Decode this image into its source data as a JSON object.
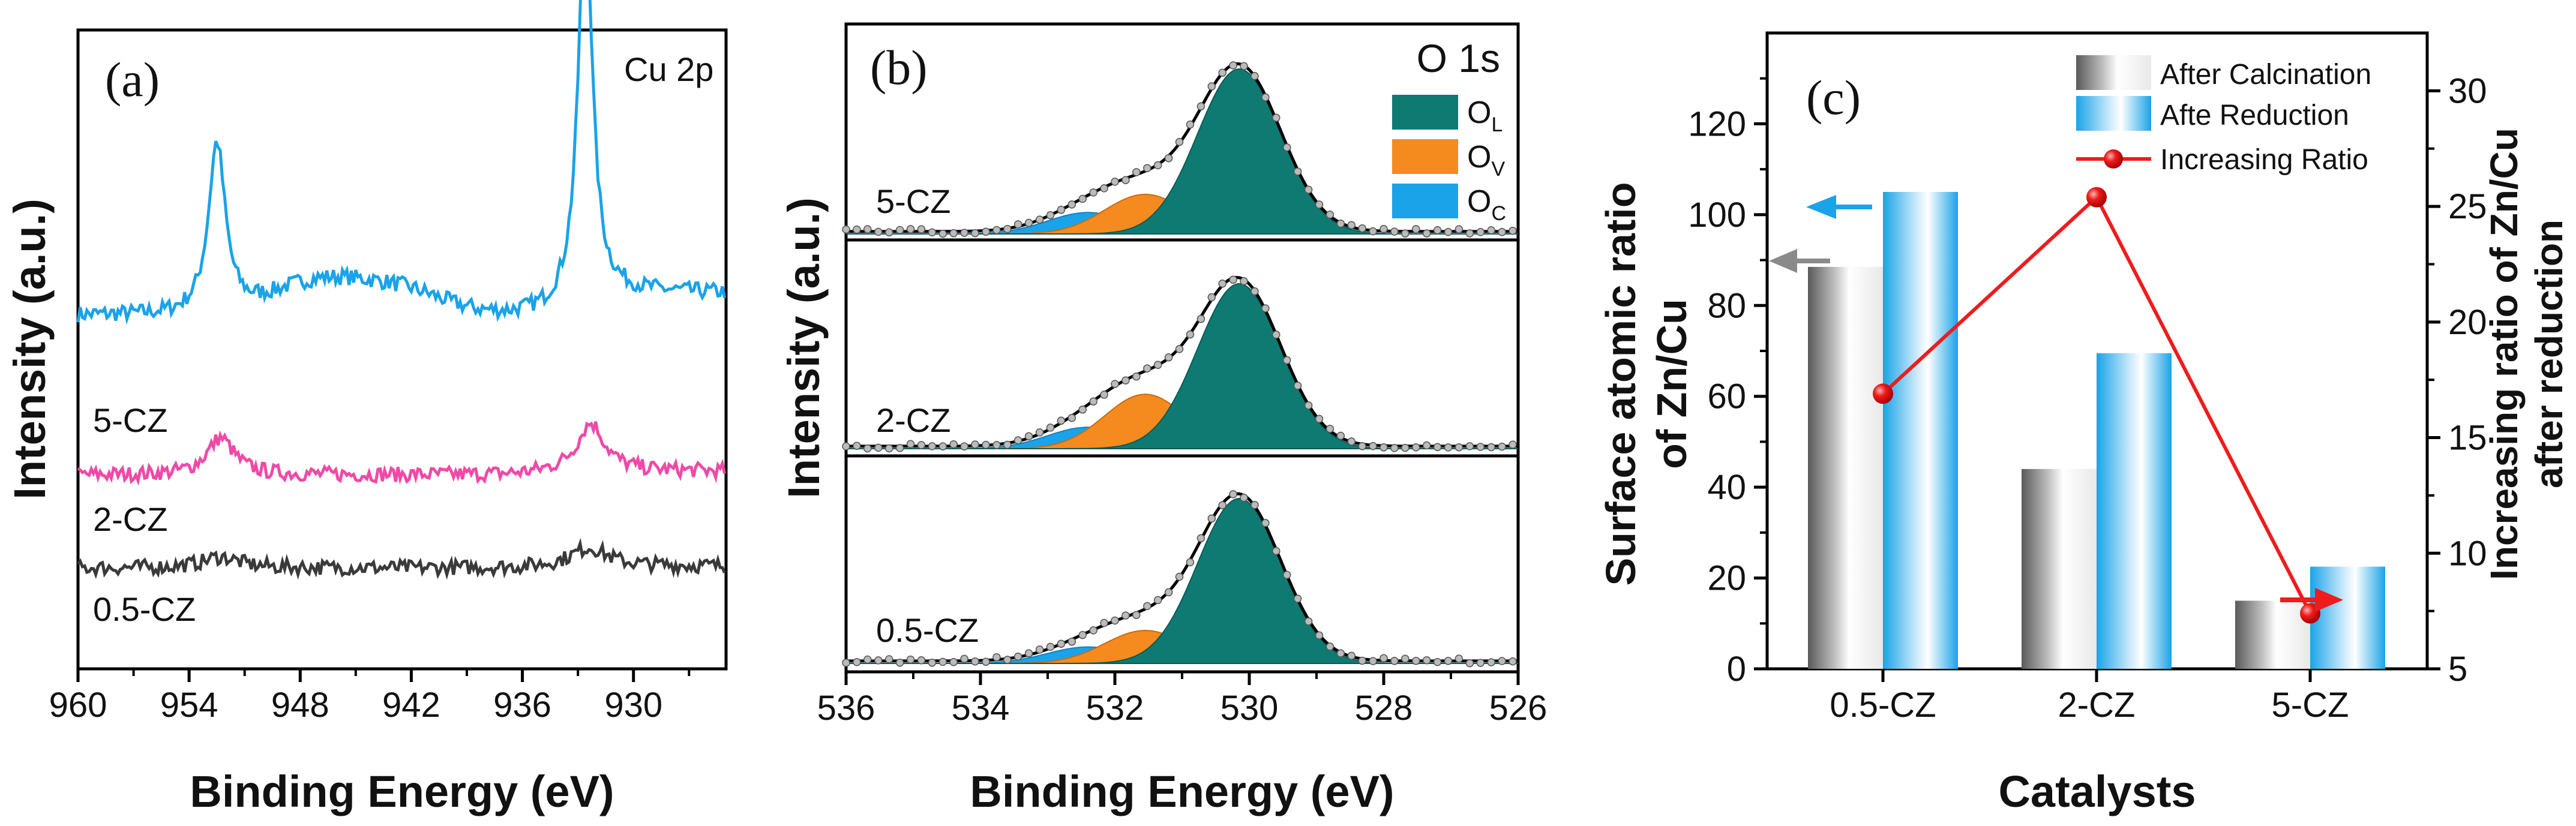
{
  "colors": {
    "cu_5cz": "#1aa3e8",
    "cu_2cz": "#ef4aa7",
    "cu_05cz": "#3a3a3a",
    "ol": "#0f7a72",
    "ov": "#f58a1f",
    "oc": "#1aa3e8",
    "ratio": "#ee1c1c",
    "gray_arrow": "#8a8a8a",
    "blue_arrow": "#1aa3e8",
    "red_arrow": "#ee1c1c"
  },
  "chart_data": [
    {
      "id": "a",
      "type": "line",
      "panel_label": "(a)",
      "annotation": "Cu 2p",
      "xlabel": "Binding Energy (eV)",
      "ylabel": "Intensity (a.u.)",
      "xlim": [
        960,
        925
      ],
      "xticks": [
        960,
        954,
        948,
        942,
        936,
        930
      ],
      "series": [
        {
          "name": "5-CZ",
          "color": "#1aa3e8",
          "baseline": 8.3,
          "noise": 0.22,
          "peaks": [
            {
              "center": 952.5,
              "height": 4.6,
              "width": 0.55
            },
            {
              "center": 932.6,
              "height": 10.7,
              "width": 0.45
            }
          ],
          "shoulders": [
            {
              "center": 946.8,
              "height": 0.9,
              "width": 2.6
            },
            {
              "center": 942.3,
              "height": 0.55,
              "width": 2.2
            }
          ],
          "step": {
            "center": 933.5,
            "height": 0.6
          }
        },
        {
          "name": "2-CZ",
          "color": "#ef4aa7",
          "baseline": 4.0,
          "noise": 0.2,
          "peaks": [
            {
              "center": 952.3,
              "height": 1.0,
              "width": 0.9
            },
            {
              "center": 932.3,
              "height": 1.3,
              "width": 0.9
            }
          ],
          "shoulders": [],
          "step": {
            "center": 935,
            "height": 0.1
          }
        },
        {
          "name": "0.5-CZ",
          "color": "#3a3a3a",
          "baseline": 1.5,
          "noise": 0.2,
          "peaks": [
            {
              "center": 952.3,
              "height": 0.3,
              "width": 1.2
            },
            {
              "center": 932.4,
              "height": 0.5,
              "width": 1.2
            }
          ],
          "shoulders": [],
          "step": {
            "center": 935,
            "height": 0.05
          }
        }
      ]
    },
    {
      "id": "b",
      "type": "area",
      "panel_label": "(b)",
      "annotation": "O 1s",
      "xlabel": "Binding Energy (eV)",
      "ylabel": "Intensity (a.u.)",
      "xlim": [
        536,
        526
      ],
      "xticks": [
        536,
        534,
        532,
        530,
        528,
        526
      ],
      "legend": [
        {
          "main": "O",
          "sub": "L",
          "color": "#0f7a72"
        },
        {
          "main": "O",
          "sub": "V",
          "color": "#f58a1f"
        },
        {
          "main": "O",
          "sub": "C",
          "color": "#1aa3e8"
        }
      ],
      "components": {
        "ol_center": 530.15,
        "ol_sigma": 0.62,
        "ov_center": 531.55,
        "ov_sigma": 0.6,
        "oc_center": 532.4,
        "oc_sigma": 0.6
      },
      "subpanels": [
        {
          "name": "5-CZ",
          "ol": 1.0,
          "ov": 0.24,
          "oc": 0.13
        },
        {
          "name": "2-CZ",
          "ol": 1.0,
          "ov": 0.33,
          "oc": 0.13
        },
        {
          "name": "0.5-CZ",
          "ol": 1.0,
          "ov": 0.2,
          "oc": 0.1
        }
      ]
    },
    {
      "id": "c",
      "type": "bar",
      "panel_label": "(c)",
      "xlabel": "Catalysts",
      "ylabel_line1": "Surface atomic ratio",
      "ylabel_line2": "of Zn/Cu",
      "y2label_line1": "Increasing ratio of Zn/Cu",
      "y2label_line2": "after reduction",
      "categories": [
        "0.5-CZ",
        "2-CZ",
        "5-CZ"
      ],
      "ylim": [
        0,
        140
      ],
      "yticks": [
        0,
        20,
        40,
        60,
        80,
        100,
        120
      ],
      "y2lim": [
        5,
        32.5
      ],
      "y2ticks": [
        5,
        10,
        15,
        20,
        25,
        30
      ],
      "series": [
        {
          "name": "After Calcination",
          "values": [
            88.5,
            44,
            15
          ]
        },
        {
          "name": "Afte Reduction",
          "values": [
            105,
            69.5,
            22.5
          ]
        }
      ],
      "line_series": {
        "name": "Increasing Ratio",
        "values": [
          16.9,
          25.4,
          7.4
        ]
      }
    }
  ]
}
